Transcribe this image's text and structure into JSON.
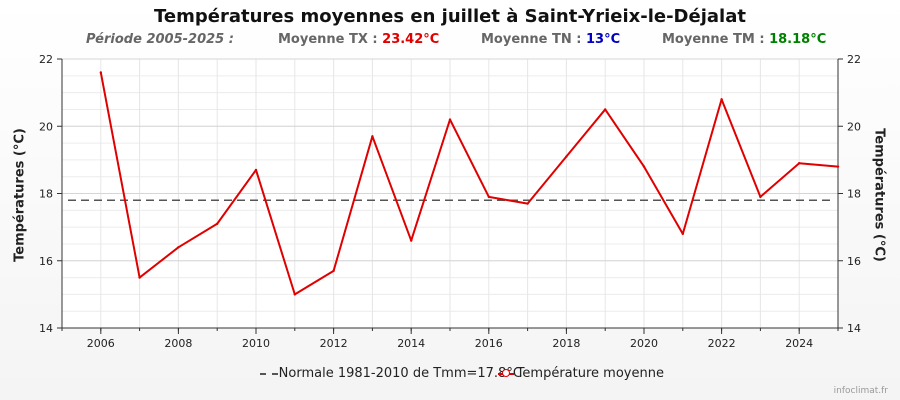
{
  "header": {
    "title": "Températures moyennes en juillet à Saint-Yrieix-le-Déjalat",
    "period": "Période 2005-2025 :",
    "tx_label": "Moyenne TX : ",
    "tx_value": "23.42°C",
    "tn_label": "Moyenne TN : ",
    "tn_value": "13°C",
    "tm_label": "Moyenne TM : ",
    "tm_value": "18.18°C"
  },
  "colors": {
    "tx": "#e00000",
    "tn": "#0000c0",
    "tm": "#008000",
    "series": "#e00000",
    "normal": "#555555"
  },
  "credit": "infoclimat.fr",
  "chart_data": {
    "type": "line",
    "title": "Températures moyennes en juillet à Saint-Yrieix-le-Déjalat",
    "ylabel": "Températures (°C)",
    "ylabel_right": "Températures (°C)",
    "xlim": [
      2005,
      2025
    ],
    "ylim": [
      14,
      22
    ],
    "xticks": [
      2006,
      2008,
      2010,
      2012,
      2014,
      2016,
      2018,
      2020,
      2022,
      2024
    ],
    "yticks": [
      14,
      16,
      18,
      20,
      22
    ],
    "grid": true,
    "legend_position": "bottom",
    "series": [
      {
        "name": "Température moyenne",
        "x": [
          2006,
          2007,
          2008,
          2009,
          2010,
          2011,
          2012,
          2013,
          2014,
          2015,
          2016,
          2017,
          2018,
          2019,
          2020,
          2021,
          2022,
          2023,
          2024,
          2025
        ],
        "values": [
          21.6,
          15.5,
          16.4,
          17.1,
          18.7,
          15.0,
          15.7,
          19.7,
          16.6,
          20.2,
          17.9,
          17.7,
          19.1,
          20.5,
          18.8,
          16.8,
          20.8,
          17.9,
          18.9,
          18.8
        ]
      }
    ],
    "reference_line": {
      "name": "Normale 1981-2010 de Tmm=17.8°C",
      "value": 17.8
    }
  }
}
